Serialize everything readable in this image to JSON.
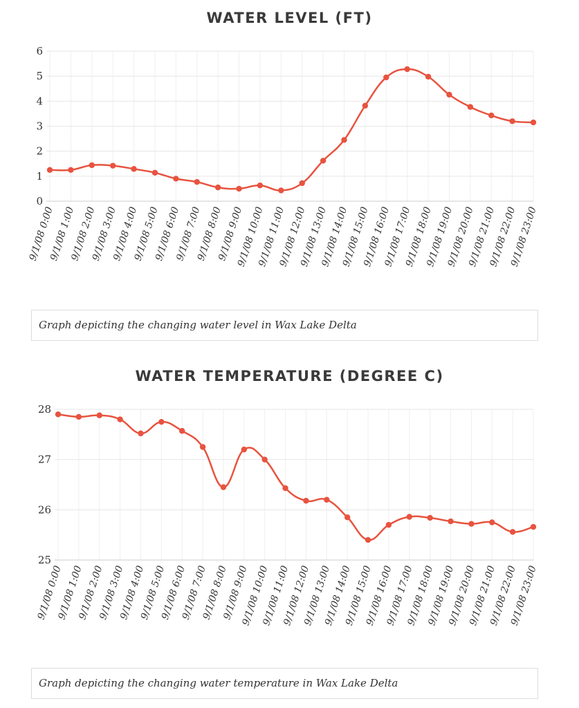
{
  "chart_data": [
    {
      "type": "line",
      "title": "WATER LEVEL (FT)",
      "caption": "Graph depicting the changing water level in Wax Lake Delta",
      "categories": [
        "9/1/08 0:00",
        "9/1/08 1:00",
        "9/1/08 2:00",
        "9/1/08 3:00",
        "9/1/08 4:00",
        "9/1/08 5:00",
        "9/1/08 6:00",
        "9/1/08 7:00",
        "9/1/08 8:00",
        "9/1/08 9:00",
        "9/1/08 10:00",
        "9/1/08 11:00",
        "9/1/08 12:00",
        "9/1/08 13:00",
        "9/1/08 14:00",
        "9/1/08 15:00",
        "9/1/08 16:00",
        "9/1/08 17:00",
        "9/1/08 18:00",
        "9/1/08 19:00",
        "9/1/08 20:00",
        "9/1/08 21:00",
        "9/1/08 22:00",
        "9/1/08 23:00"
      ],
      "values": [
        1.25,
        1.25,
        1.44,
        1.42,
        1.29,
        1.14,
        0.9,
        0.77,
        0.55,
        0.5,
        0.63,
        0.43,
        0.72,
        1.62,
        2.45,
        3.82,
        4.95,
        5.28,
        4.98,
        4.26,
        3.77,
        3.43,
        3.2,
        3.15
      ],
      "yticks": [
        0,
        1,
        2,
        3,
        4,
        5,
        6
      ],
      "ylim": [
        0,
        6
      ],
      "grid": true,
      "color": "#e8533f"
    },
    {
      "type": "line",
      "title": "WATER TEMPERATURE (DEGREE C)",
      "caption": "Graph depicting the changing water temperature in Wax Lake Delta",
      "categories": [
        "9/1/08 0:00",
        "9/1/08 1:00",
        "9/1/08 2:00",
        "9/1/08 3:00",
        "9/1/08 4:00",
        "9/1/08 5:00",
        "9/1/08 6:00",
        "9/1/08 7:00",
        "9/1/08 8:00",
        "9/1/08 9:00",
        "9/1/08 10:00",
        "9/1/08 11:00",
        "9/1/08 12:00",
        "9/1/08 13:00",
        "9/1/08 14:00",
        "9/1/08 15:00",
        "9/1/08 16:00",
        "9/1/08 17:00",
        "9/1/08 18:00",
        "9/1/08 19:00",
        "9/1/08 20:00",
        "9/1/08 21:00",
        "9/1/08 22:00",
        "9/1/08 23:00"
      ],
      "values": [
        27.9,
        27.85,
        27.88,
        27.8,
        27.52,
        27.75,
        27.57,
        27.25,
        26.45,
        27.2,
        27.0,
        26.43,
        26.18,
        26.2,
        25.85,
        25.4,
        25.7,
        25.86,
        25.84,
        25.77,
        25.72,
        25.75,
        25.56,
        25.66
      ],
      "yticks": [
        25,
        26,
        27,
        28
      ],
      "ylim": [
        25,
        28
      ],
      "grid": true,
      "color": "#e8533f"
    }
  ]
}
